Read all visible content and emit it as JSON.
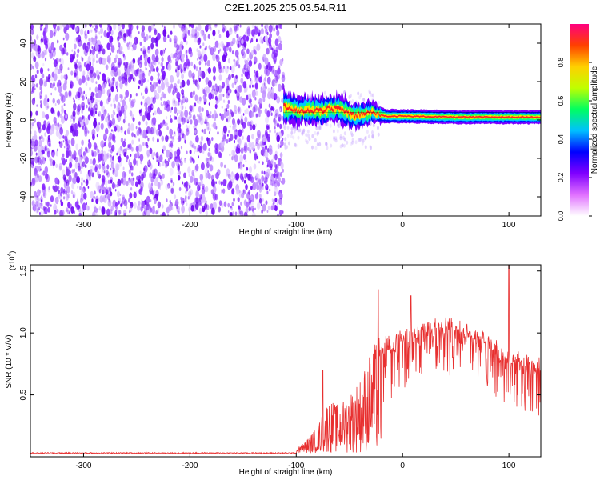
{
  "title": "C2E1.2025.205.03.54.R11",
  "chart_data": [
    {
      "type": "heatmap",
      "xlabel": "Height of straight line (km)",
      "ylabel": "Frequency (Hz)",
      "xlim": [
        -350,
        130
      ],
      "ylim": [
        -50,
        50
      ],
      "x_ticks": [
        "-300",
        "-200",
        "-100",
        "0",
        "100"
      ],
      "y_ticks": [
        "-40",
        "-20",
        "0",
        "20",
        "40"
      ],
      "noise_region_x": [
        -350,
        -112
      ],
      "signal_band": [
        {
          "x": -112,
          "freq": 7,
          "width": 5
        },
        {
          "x": -100,
          "freq": 5,
          "width": 4
        },
        {
          "x": -80,
          "freq": 5,
          "width": 4
        },
        {
          "x": -60,
          "freq": 6,
          "width": 4
        },
        {
          "x": -45,
          "freq": 2,
          "width": 4
        },
        {
          "x": -30,
          "freq": 4,
          "width": 3
        },
        {
          "x": -15,
          "freq": 2,
          "width": 2
        },
        {
          "x": 0,
          "freq": 2,
          "width": 2
        },
        {
          "x": 50,
          "freq": 1.5,
          "width": 2
        },
        {
          "x": 100,
          "freq": 1.5,
          "width": 2
        },
        {
          "x": 130,
          "freq": 1.5,
          "width": 2
        }
      ],
      "colorbar": {
        "label": "Normalized spectral amplitude",
        "ticks": [
          "0.0",
          "0.2",
          "0.4",
          "0.6",
          "0.8"
        ],
        "colors": [
          "#ffffff",
          "#e070ff",
          "#7f00ff",
          "#0000ff",
          "#00c0ff",
          "#00ff60",
          "#c0ff00",
          "#ffd000",
          "#ff4000",
          "#ff0080"
        ]
      }
    },
    {
      "type": "line",
      "xlabel": "Height of straight line (km)",
      "ylabel": "SNR (10 * V/V)",
      "scale_note": "(x10",
      "scale_exp": "4",
      "xlim": [
        -350,
        130
      ],
      "ylim": [
        0,
        1.55
      ],
      "x_ticks": [
        "-300",
        "-200",
        "-100",
        "0",
        "100"
      ],
      "y_ticks": [
        "0.5",
        "1.0",
        "1.5"
      ],
      "color": "#e83030",
      "envelope": [
        {
          "x": -350,
          "y": 0.03
        },
        {
          "x": -100,
          "y": 0.03
        },
        {
          "x": -90,
          "y": 0.1
        },
        {
          "x": -80,
          "y": 0.2
        },
        {
          "x": -70,
          "y": 0.4
        },
        {
          "x": -60,
          "y": 0.35
        },
        {
          "x": -50,
          "y": 0.45
        },
        {
          "x": -40,
          "y": 0.55
        },
        {
          "x": -30,
          "y": 0.75
        },
        {
          "x": -20,
          "y": 0.9
        },
        {
          "x": -10,
          "y": 0.95
        },
        {
          "x": 0,
          "y": 1.0
        },
        {
          "x": 20,
          "y": 1.05
        },
        {
          "x": 40,
          "y": 1.1
        },
        {
          "x": 60,
          "y": 1.05
        },
        {
          "x": 80,
          "y": 0.95
        },
        {
          "x": 100,
          "y": 0.85
        },
        {
          "x": 115,
          "y": 0.8
        },
        {
          "x": 130,
          "y": 0.75
        }
      ],
      "spikes": [
        {
          "x": -75,
          "y": 0.7
        },
        {
          "x": -23,
          "y": 1.35
        },
        {
          "x": 8,
          "y": 1.3
        },
        {
          "x": 100,
          "y": 1.58
        }
      ]
    }
  ]
}
